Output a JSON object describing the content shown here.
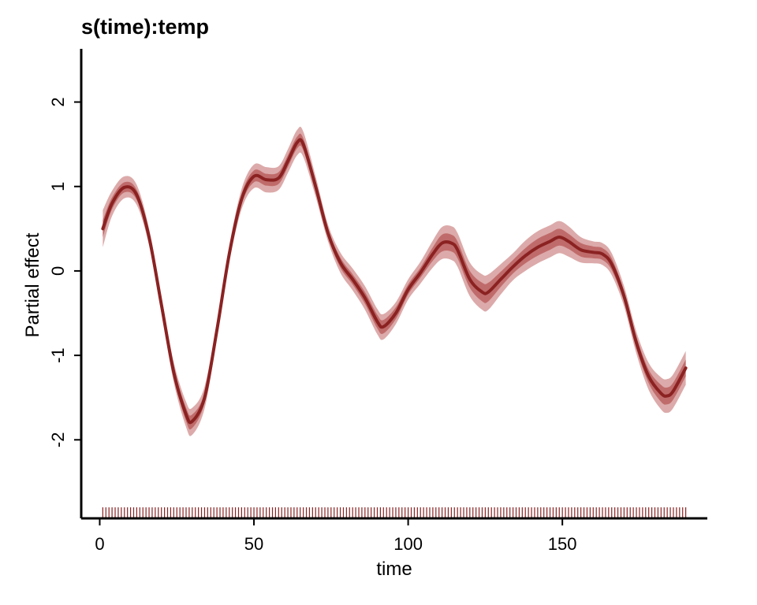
{
  "chart_data": {
    "type": "line",
    "title": "s(time):temp",
    "xlabel": "time",
    "ylabel": "Partial effect",
    "xlim": [
      -6,
      197
    ],
    "ylim": [
      -2.93,
      2.63
    ],
    "x_ticks": [
      0,
      50,
      100,
      150
    ],
    "x_tick_labels": [
      "0",
      "50",
      "100",
      "150"
    ],
    "y_ticks": [
      -2,
      -1,
      0,
      1,
      2
    ],
    "y_tick_labels": [
      "-2",
      "-1",
      "0",
      "1",
      "2"
    ],
    "grid": false,
    "legend": "none",
    "series": [
      {
        "x": [
          1,
          4,
          8,
          12,
          16,
          20,
          24,
          28,
          30,
          34,
          38,
          42,
          46,
          50,
          54,
          58,
          61,
          64,
          66,
          70,
          74,
          78,
          82,
          86,
          90,
          92,
          96,
          100,
          104,
          108,
          111,
          114,
          116,
          120,
          124,
          126,
          130,
          134,
          138,
          142,
          146,
          149,
          152,
          156,
          160,
          163,
          166,
          170,
          174,
          178,
          182,
          184,
          186,
          190
        ],
        "y": [
          0.5,
          0.8,
          0.99,
          0.9,
          0.4,
          -0.4,
          -1.2,
          -1.7,
          -1.78,
          -1.5,
          -0.7,
          0.2,
          0.85,
          1.12,
          1.08,
          1.1,
          1.3,
          1.52,
          1.5,
          1.0,
          0.45,
          0.1,
          -0.1,
          -0.32,
          -0.6,
          -0.66,
          -0.5,
          -0.22,
          -0.02,
          0.2,
          0.33,
          0.33,
          0.25,
          -0.1,
          -0.25,
          -0.25,
          -0.1,
          0.05,
          0.18,
          0.28,
          0.35,
          0.4,
          0.35,
          0.25,
          0.22,
          0.2,
          0.08,
          -0.3,
          -0.85,
          -1.25,
          -1.45,
          -1.48,
          -1.42,
          -1.15
        ],
        "band_inner": [
          0.1,
          0.07,
          0.06,
          0.06,
          0.05,
          0.05,
          0.06,
          0.08,
          0.08,
          0.06,
          0.05,
          0.05,
          0.06,
          0.07,
          0.07,
          0.07,
          0.07,
          0.07,
          0.07,
          0.06,
          0.05,
          0.06,
          0.06,
          0.07,
          0.08,
          0.08,
          0.07,
          0.06,
          0.06,
          0.08,
          0.1,
          0.1,
          0.1,
          0.1,
          0.11,
          0.11,
          0.09,
          0.08,
          0.09,
          0.1,
          0.1,
          0.1,
          0.09,
          0.08,
          0.07,
          0.07,
          0.07,
          0.06,
          0.07,
          0.08,
          0.1,
          0.1,
          0.1,
          0.1
        ],
        "band_outer": [
          0.22,
          0.15,
          0.13,
          0.12,
          0.1,
          0.1,
          0.12,
          0.15,
          0.16,
          0.13,
          0.1,
          0.1,
          0.12,
          0.14,
          0.15,
          0.14,
          0.14,
          0.15,
          0.15,
          0.12,
          0.1,
          0.12,
          0.13,
          0.14,
          0.15,
          0.15,
          0.13,
          0.12,
          0.13,
          0.16,
          0.19,
          0.2,
          0.2,
          0.2,
          0.21,
          0.21,
          0.18,
          0.16,
          0.18,
          0.19,
          0.19,
          0.19,
          0.18,
          0.15,
          0.13,
          0.13,
          0.13,
          0.12,
          0.13,
          0.16,
          0.19,
          0.2,
          0.2,
          0.2
        ]
      }
    ],
    "rug_x_range": [
      1,
      190
    ],
    "colors": {
      "line": "#8b2222",
      "band_inner": "#c06b6b",
      "band_outer": "#dcaaaa",
      "rug": "#8b2222",
      "axis": "#000000"
    }
  }
}
